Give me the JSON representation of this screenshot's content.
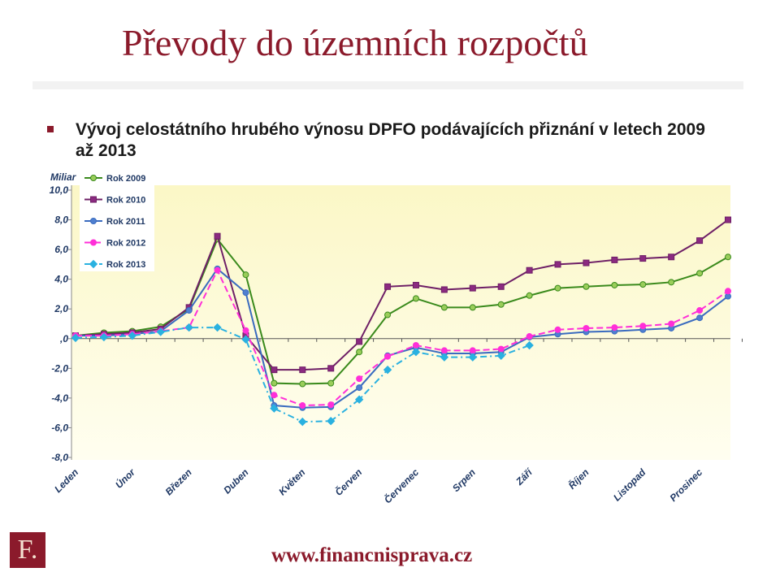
{
  "slide": {
    "title": "Převody do územních rozpočtů",
    "bullet": "Vývoj celostátního hrubého výnosu DPFO podávajících přiznání v letech 2009 až 2013",
    "logo": "F.",
    "footer": "www.financnisprava.cz"
  },
  "chart_data": {
    "type": "line",
    "y_label": "Miliar",
    "categories": [
      "Leden",
      null,
      "Únor",
      null,
      "Březen",
      null,
      "Duben",
      null,
      "Květen",
      null,
      "Červen",
      null,
      "Červenec",
      null,
      "Srpen",
      null,
      "Září",
      null,
      "Říjen",
      null,
      "Listopad",
      null,
      "Prosinec",
      null
    ],
    "ylim": [
      -8,
      10
    ],
    "yticks": [
      {
        "value": -8,
        "label": "-8,0"
      },
      {
        "value": -6,
        "label": "-6,0"
      },
      {
        "value": -4,
        "label": "-4,0"
      },
      {
        "value": -2,
        "label": "-2,0"
      },
      {
        "value": 0,
        "label": ",0"
      },
      {
        "value": 2,
        "label": "2,0"
      },
      {
        "value": 4,
        "label": "4,0"
      },
      {
        "value": 6,
        "label": "6,0"
      },
      {
        "value": 8,
        "label": "8,0"
      },
      {
        "value": 10,
        "label": "10,0"
      }
    ],
    "legend": "top-left",
    "series": [
      {
        "name": "Rok 2009",
        "color": "#3a8a1c",
        "marker_color": "#9acd5a",
        "marker": "circle",
        "dash": "solid",
        "values": [
          0.2,
          0.4,
          0.5,
          0.8,
          2.0,
          6.7,
          4.3,
          -3.0,
          -3.05,
          -3.0,
          -0.9,
          1.6,
          2.7,
          2.1,
          2.1,
          2.3,
          2.9,
          3.4,
          3.5,
          3.6,
          3.65,
          3.8,
          4.4,
          5.5
        ]
      },
      {
        "name": "Rok 2010",
        "color": "#6e1f66",
        "marker_color": "#8b2a80",
        "marker": "square",
        "dash": "solid",
        "values": [
          0.2,
          0.3,
          0.4,
          0.65,
          2.1,
          6.9,
          0.2,
          -2.1,
          -2.1,
          -2.0,
          -0.2,
          3.5,
          3.6,
          3.3,
          3.4,
          3.5,
          4.6,
          5.0,
          5.1,
          5.3,
          5.4,
          5.5,
          6.6,
          8.0
        ]
      },
      {
        "name": "Rok 2011",
        "color": "#3a6bbf",
        "marker_color": "#4f7fd0",
        "marker": "circle",
        "dash": "solid",
        "values": [
          0.2,
          0.2,
          0.3,
          0.5,
          1.9,
          4.7,
          3.1,
          -4.5,
          -4.65,
          -4.6,
          -3.3,
          -1.15,
          -0.6,
          -1.0,
          -1.0,
          -0.9,
          0.1,
          0.3,
          0.45,
          0.5,
          0.6,
          0.7,
          1.4,
          2.85
        ]
      },
      {
        "name": "Rok 2012",
        "color": "#ff2fd8",
        "marker_color": "#ff2fd8",
        "marker": "circle",
        "dash": "dashed",
        "values": [
          0.2,
          0.2,
          0.3,
          0.5,
          0.75,
          4.6,
          0.55,
          -3.8,
          -4.5,
          -4.45,
          -2.7,
          -1.2,
          -0.45,
          -0.8,
          -0.8,
          -0.7,
          0.15,
          0.6,
          0.7,
          0.75,
          0.85,
          1.0,
          1.9,
          3.2
        ]
      },
      {
        "name": "Rok 2013",
        "color": "#2ab1e0",
        "marker_color": "#2ab1e0",
        "marker": "diamond",
        "dash": "dashdot",
        "values": [
          0.05,
          0.1,
          0.2,
          0.45,
          0.75,
          0.75,
          -0.05,
          -4.7,
          -5.6,
          -5.55,
          -4.1,
          -2.1,
          -0.9,
          -1.25,
          -1.25,
          -1.15,
          -0.45,
          null,
          null,
          null,
          null,
          null,
          null,
          null
        ]
      }
    ]
  }
}
